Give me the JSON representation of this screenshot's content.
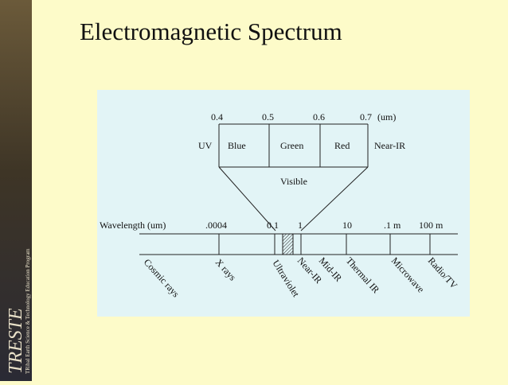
{
  "title": "Electromagnetic Spectrum",
  "sidebar": {
    "logo": "TRESTE",
    "program": "TRibal Earth Science & Technology Education Program"
  },
  "visible_scale": {
    "ticks": [
      "0.4",
      "0.5",
      "0.6",
      "0.7"
    ],
    "unit": "(um)",
    "bands": [
      "UV",
      "Blue",
      "Green",
      "Red",
      "Near-IR"
    ],
    "label": "Visible"
  },
  "wavelength_scale": {
    "label": "Wavelength (um)",
    "ticks": [
      ".0004",
      "0.1",
      "1",
      "10",
      ".1 m",
      "100 m"
    ],
    "regions": [
      "Cosmic rays",
      "X rays",
      "Ultraviolet",
      "Near-IR",
      "Mid-IR",
      "Thermal IR",
      "Microwave",
      "Radio/TV"
    ]
  }
}
